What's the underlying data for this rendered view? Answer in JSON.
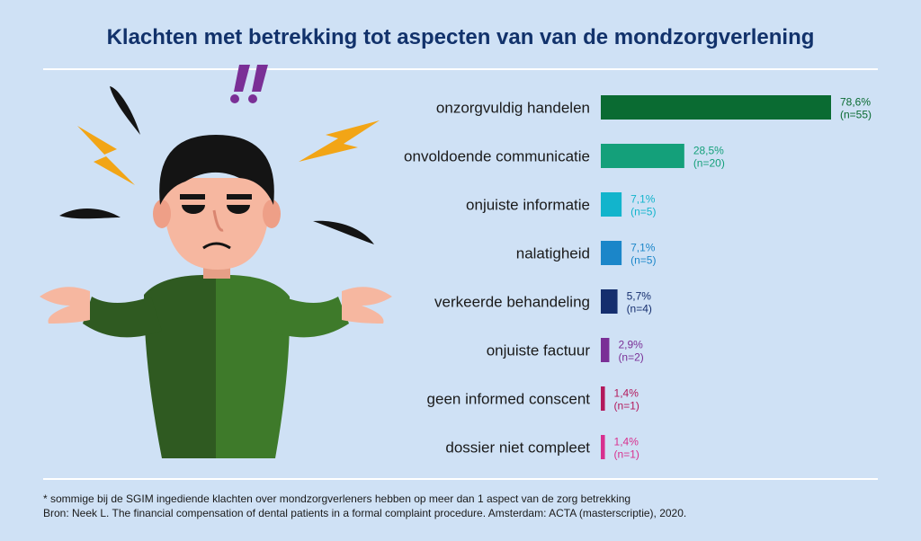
{
  "title": "Klachten met betrekking tot aspecten van van de mondzorgverlening",
  "footnote": "* sommige bij de SGIM ingediende klachten over mondzorgverleners hebben op meer dan 1 aspect van de zorg betrekking",
  "source": "Bron: Neek L. The financial compensation of dental patients in a formal complaint procedure. Amsterdam: ACTA (masterscriptie), 2020.",
  "colors": {
    "background": "#cfe1f5",
    "title": "#12326b"
  },
  "chart_data": {
    "type": "bar",
    "orientation": "horizontal",
    "categories": [
      "onzorgvuldig handelen",
      "onvoldoende communicatie",
      "onjuiste informatie",
      "nalatigheid",
      "verkeerde behandeling",
      "onjuiste factuur",
      "geen informed conscent",
      "dossier niet compleet"
    ],
    "values": [
      78.6,
      28.5,
      7.1,
      7.1,
      5.7,
      2.9,
      1.4,
      1.4
    ],
    "value_labels": [
      "78,6%",
      "28,5%",
      "7,1%",
      "7,1%",
      "5,7%",
      "2,9%",
      "1,4%",
      "1,4%"
    ],
    "counts": [
      "(n=55)",
      "(n=20)",
      "(n=5)",
      "(n=5)",
      "(n=4)",
      "(n=2)",
      "(n=1)",
      "(n=1)"
    ],
    "bar_colors": [
      "#0a6b32",
      "#14a07a",
      "#12b4cc",
      "#1b86c9",
      "#152e6e",
      "#7a2f96",
      "#b3185b",
      "#d8308f"
    ],
    "xlim": [
      0,
      78.6
    ],
    "grid": false,
    "legend": "none"
  }
}
